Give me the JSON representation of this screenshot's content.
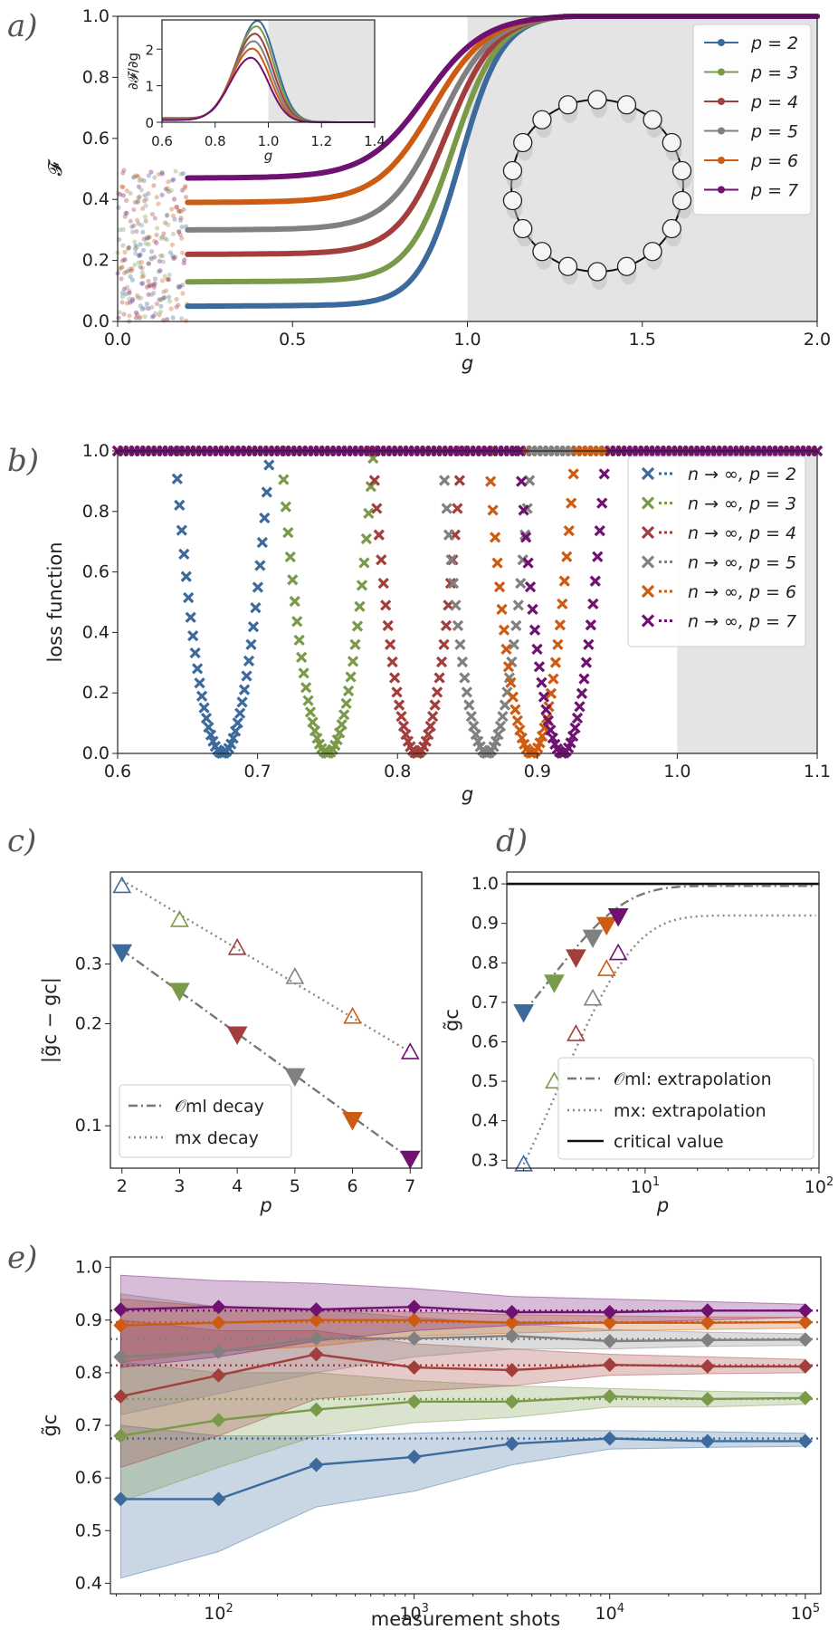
{
  "colors": {
    "p2": "#3c6a9c",
    "p3": "#7a9a4a",
    "p4": "#a23f3c",
    "p5": "#808080",
    "p6": "#cd5c12",
    "p7": "#6e1170",
    "shade": "#e4e4e4"
  },
  "chart_data": [
    {
      "id": "a",
      "type": "line",
      "panel_label": "a)",
      "xlabel": "g",
      "ylabel": "𝓕",
      "xlim": [
        0,
        2
      ],
      "ylim": [
        0,
        1
      ],
      "xticks": [
        "0.0",
        "0.5",
        "1.0",
        "1.5",
        "2.0"
      ],
      "yticks": [
        "0.0",
        "0.2",
        "0.4",
        "0.6",
        "0.8",
        "1.0"
      ],
      "shaded_x_range": [
        1.0,
        2.0
      ],
      "series": [
        {
          "name": "p = 2",
          "plateau": 0.05,
          "midpoint": 0.98,
          "width": 0.06
        },
        {
          "name": "p = 3",
          "plateau": 0.13,
          "midpoint": 0.96,
          "width": 0.065
        },
        {
          "name": "p = 4",
          "plateau": 0.22,
          "midpoint": 0.94,
          "width": 0.07
        },
        {
          "name": "p = 5",
          "plateau": 0.3,
          "midpoint": 0.92,
          "width": 0.075
        },
        {
          "name": "p = 6",
          "plateau": 0.39,
          "midpoint": 0.9,
          "width": 0.08
        },
        {
          "name": "p = 7",
          "plateau": 0.47,
          "midpoint": 0.88,
          "width": 0.085
        }
      ],
      "legend": [
        "p = 2",
        "p = 3",
        "p = 4",
        "p = 5",
        "p = 6",
        "p = 7"
      ],
      "inset": {
        "xlabel": "g",
        "ylabel": "∂𝓕/∂g",
        "xlim": [
          0.6,
          1.4
        ],
        "ylim": [
          0,
          2.8
        ],
        "xticks": [
          "0.6",
          "0.8",
          "1.0",
          "1.2",
          "1.4"
        ],
        "yticks": [
          "0",
          "1",
          "2"
        ],
        "shaded_x_range": [
          1.0,
          1.4
        ],
        "peaks": [
          {
            "name": "p = 2",
            "peak_g": 0.96,
            "peak_value": 2.75
          },
          {
            "name": "p = 3",
            "peak_g": 0.955,
            "peak_value": 2.6
          },
          {
            "name": "p = 4",
            "peak_g": 0.95,
            "peak_value": 2.4
          },
          {
            "name": "p = 5",
            "peak_g": 0.945,
            "peak_value": 2.2
          },
          {
            "name": "p = 6",
            "peak_g": 0.94,
            "peak_value": 2.0
          },
          {
            "name": "p = 7",
            "peak_g": 0.935,
            "peak_value": 1.75
          }
        ]
      },
      "ring_sites": 18
    },
    {
      "id": "b",
      "type": "scatter",
      "panel_label": "b)",
      "xlabel": "g",
      "ylabel": "loss function",
      "xlim": [
        0.6,
        1.1
      ],
      "ylim": [
        0,
        1
      ],
      "xticks": [
        "0.6",
        "0.7",
        "0.8",
        "0.9",
        "1.0",
        "1.1"
      ],
      "yticks": [
        "0.0",
        "0.2",
        "0.4",
        "0.6",
        "0.8",
        "1.0"
      ],
      "shaded_x_range": [
        1.0,
        1.1
      ],
      "series": [
        {
          "name": "n → ∞, p = 2",
          "min_g": 0.675,
          "half_width": 0.034
        },
        {
          "name": "n → ∞, p = 3",
          "min_g": 0.75,
          "half_width": 0.033
        },
        {
          "name": "n → ∞, p = 4",
          "min_g": 0.814,
          "half_width": 0.032
        },
        {
          "name": "n → ∞, p = 5",
          "min_g": 0.864,
          "half_width": 0.032
        },
        {
          "name": "n → ∞, p = 6",
          "min_g": 0.896,
          "half_width": 0.031
        },
        {
          "name": "n → ∞, p = 7",
          "min_g": 0.918,
          "half_width": 0.031
        }
      ]
    },
    {
      "id": "c",
      "type": "scatter",
      "panel_label": "c)",
      "xlabel": "p",
      "ylabel": "|g̃c − gc|",
      "yscale": "log",
      "xlim": [
        1.8,
        7.2
      ],
      "ylim": [
        0.075,
        0.56
      ],
      "xticks": [
        "2",
        "3",
        "4",
        "5",
        "6",
        "7"
      ],
      "yticks": [
        {
          "value": 0.3,
          "label": "0.3"
        },
        {
          "value": 0.2,
          "label": "0.2"
        },
        {
          "value": 0.1,
          "label": "0.1"
        }
      ],
      "p": [
        2,
        3,
        4,
        5,
        6,
        7
      ],
      "ml_values": [
        0.325,
        0.25,
        0.186,
        0.14,
        0.104,
        0.08
      ],
      "mx_values": [
        0.51,
        0.405,
        0.335,
        0.275,
        0.21,
        0.165
      ],
      "ml_fit": [
        0.33,
        0.08
      ],
      "mx_fit": [
        0.53,
        0.165
      ],
      "legend": [
        "𝒪ml decay",
        "mx decay"
      ]
    },
    {
      "id": "d",
      "type": "scatter",
      "panel_label": "d)",
      "xlabel": "p",
      "ylabel": "g̃c",
      "xscale": "log",
      "xlim": [
        1.6,
        100
      ],
      "ylim": [
        0.28,
        1.03
      ],
      "xticks": [
        {
          "value": 10,
          "label": "10",
          "sup": "1"
        },
        {
          "value": 100,
          "label": "10",
          "sup": "2"
        }
      ],
      "yticks": [
        "0.3",
        "0.4",
        "0.5",
        "0.6",
        "0.7",
        "0.8",
        "0.9",
        "1.0"
      ],
      "p": [
        2,
        3,
        4,
        5,
        6,
        7
      ],
      "ml_values": [
        0.675,
        0.75,
        0.814,
        0.864,
        0.896,
        0.918
      ],
      "mx_values": [
        0.29,
        0.5,
        0.62,
        0.71,
        0.785,
        0.825
      ],
      "ml_asymptote": 0.995,
      "mx_asymptote": 0.92,
      "critical_value": 1.0,
      "legend": [
        "𝒪ml: extrapolation",
        "mx: extrapolation",
        "critical value"
      ]
    },
    {
      "id": "e",
      "type": "line",
      "panel_label": "e)",
      "xlabel": "measurement shots",
      "ylabel": "g̃c",
      "xscale": "log",
      "xlim": [
        28,
        120000
      ],
      "ylim": [
        0.38,
        1.02
      ],
      "xticks": [
        {
          "value": 100,
          "label": "10",
          "sup": "2"
        },
        {
          "value": 1000,
          "label": "10",
          "sup": "3"
        },
        {
          "value": 10000,
          "label": "10",
          "sup": "4"
        },
        {
          "value": 100000,
          "label": "10",
          "sup": "5"
        }
      ],
      "yticks": [
        "0.4",
        "0.5",
        "0.6",
        "0.7",
        "0.8",
        "0.9",
        "1.0"
      ],
      "shots": [
        31.6,
        100,
        316,
        1000,
        3162,
        10000,
        31623,
        100000
      ],
      "series": [
        {
          "name": "p = 2",
          "values": [
            0.56,
            0.56,
            0.625,
            0.64,
            0.665,
            0.675,
            0.67,
            0.67
          ],
          "reference": 0.675,
          "band_low": [
            0.41,
            0.46,
            0.545,
            0.575,
            0.625,
            0.655,
            0.658,
            0.66
          ],
          "band_high": [
            0.7,
            0.68,
            0.68,
            0.685,
            0.69,
            0.69,
            0.688,
            0.685
          ]
        },
        {
          "name": "p = 3",
          "values": [
            0.68,
            0.71,
            0.73,
            0.745,
            0.745,
            0.755,
            0.75,
            0.752
          ],
          "reference": 0.75,
          "band_low": [
            0.555,
            0.62,
            0.68,
            0.705,
            0.715,
            0.735,
            0.735,
            0.74
          ],
          "band_high": [
            0.82,
            0.8,
            0.8,
            0.785,
            0.775,
            0.77,
            0.765,
            0.762
          ]
        },
        {
          "name": "p = 4",
          "values": [
            0.755,
            0.795,
            0.835,
            0.81,
            0.805,
            0.815,
            0.812,
            0.812
          ],
          "reference": 0.814,
          "band_low": [
            0.62,
            0.68,
            0.75,
            0.765,
            0.775,
            0.795,
            0.798,
            0.8
          ],
          "band_high": [
            0.9,
            0.88,
            0.88,
            0.855,
            0.845,
            0.835,
            0.83,
            0.825
          ]
        },
        {
          "name": "p = 5",
          "values": [
            0.83,
            0.84,
            0.865,
            0.865,
            0.87,
            0.86,
            0.862,
            0.863
          ],
          "reference": 0.864,
          "band_low": [
            0.72,
            0.76,
            0.8,
            0.83,
            0.845,
            0.845,
            0.85,
            0.852
          ],
          "band_high": [
            0.95,
            0.925,
            0.92,
            0.905,
            0.893,
            0.882,
            0.877,
            0.874
          ]
        },
        {
          "name": "p = 6",
          "values": [
            0.89,
            0.895,
            0.9,
            0.9,
            0.895,
            0.895,
            0.895,
            0.896
          ],
          "reference": 0.896,
          "band_low": [
            0.82,
            0.84,
            0.85,
            0.87,
            0.875,
            0.88,
            0.882,
            0.885
          ],
          "band_high": [
            0.94,
            0.925,
            0.92,
            0.915,
            0.91,
            0.908,
            0.906,
            0.905
          ]
        },
        {
          "name": "p = 7",
          "values": [
            0.92,
            0.925,
            0.92,
            0.925,
            0.915,
            0.915,
            0.918,
            0.918
          ],
          "reference": 0.918,
          "band_low": [
            0.81,
            0.83,
            0.86,
            0.88,
            0.89,
            0.895,
            0.9,
            0.905
          ],
          "band_high": [
            0.985,
            0.975,
            0.97,
            0.96,
            0.945,
            0.94,
            0.935,
            0.93
          ]
        }
      ]
    }
  ]
}
